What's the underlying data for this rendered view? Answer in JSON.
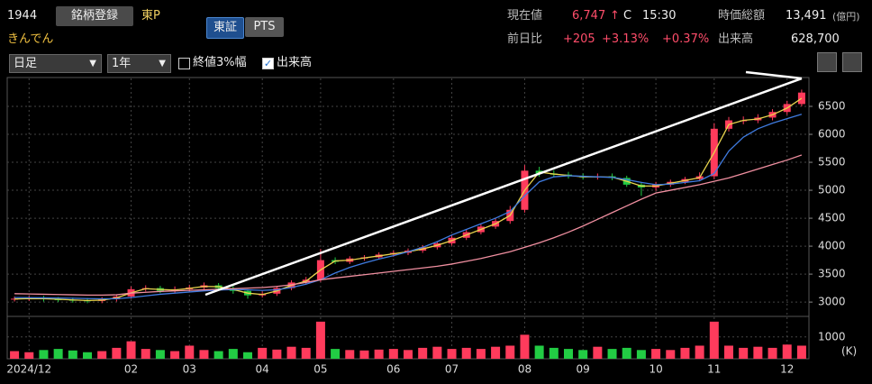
{
  "header": {
    "code": "1944",
    "register_button": "銘柄登録",
    "market": "東P",
    "name": "きんでん",
    "exchange_tabs": [
      "東証",
      "PTS"
    ],
    "price_label": "現在値",
    "price": "6,747",
    "arrow": "↑",
    "price_flag": "C",
    "time": "15:30",
    "market_cap_label": "時価総額",
    "market_cap": "13,491",
    "market_cap_unit": "(億円)",
    "change_label": "前日比",
    "change": "+205",
    "change_pct": "+3.13%",
    "change_pct2": "+0.37%",
    "volume_label": "出来高",
    "volume": "628,700"
  },
  "controls": {
    "period": "日足",
    "range": "1年",
    "option_close3": "終値3%幅",
    "option_volume": "出来高"
  },
  "chart_data": {
    "type": "candlestick",
    "categories": [
      null,
      "2024/12",
      null,
      null,
      null,
      null,
      null,
      null,
      "02",
      null,
      null,
      null,
      "03",
      null,
      null,
      null,
      null,
      "04",
      null,
      null,
      null,
      "05",
      null,
      null,
      null,
      null,
      "06",
      null,
      null,
      null,
      "07",
      null,
      null,
      null,
      null,
      "08",
      null,
      null,
      null,
      "09",
      null,
      null,
      null,
      null,
      "10",
      null,
      null,
      null,
      "11",
      null,
      null,
      null,
      null,
      "12",
      null
    ],
    "open": [
      3050,
      3060,
      3070,
      3050,
      3040,
      3030,
      3020,
      3050,
      3100,
      3230,
      3250,
      3200,
      3230,
      3260,
      3300,
      3250,
      3200,
      3120,
      3150,
      3250,
      3350,
      3400,
      3750,
      3720,
      3780,
      3800,
      3850,
      3880,
      3920,
      3980,
      4050,
      4150,
      4250,
      4350,
      4450,
      4650,
      5350,
      5300,
      5280,
      5250,
      5230,
      5250,
      5220,
      5100,
      5050,
      5100,
      5150,
      5200,
      5250,
      6100,
      6250,
      6250,
      6300,
      6400,
      6542
    ],
    "high": [
      3100,
      3110,
      3110,
      3090,
      3080,
      3070,
      3090,
      3140,
      3280,
      3300,
      3290,
      3280,
      3310,
      3350,
      3340,
      3290,
      3230,
      3190,
      3290,
      3390,
      3450,
      3950,
      3800,
      3820,
      3840,
      3890,
      3920,
      3960,
      4020,
      4090,
      4190,
      4290,
      4390,
      4500,
      4720,
      5450,
      5420,
      5360,
      5330,
      5300,
      5300,
      5300,
      5260,
      5150,
      5150,
      5190,
      5240,
      5320,
      6200,
      6310,
      6320,
      6360,
      6450,
      6600,
      6800
    ],
    "low": [
      3010,
      3020,
      3010,
      3000,
      2990,
      2980,
      2980,
      3010,
      3060,
      3190,
      3160,
      3160,
      3190,
      3220,
      3210,
      3150,
      3060,
      3080,
      3110,
      3210,
      3310,
      3360,
      3680,
      3680,
      3740,
      3760,
      3810,
      3840,
      3880,
      3940,
      4010,
      4110,
      4210,
      4310,
      4400,
      4600,
      5240,
      5230,
      5210,
      5190,
      5190,
      5180,
      5060,
      4900,
      4990,
      5060,
      5110,
      5160,
      5200,
      6050,
      6180,
      6200,
      6250,
      6350,
      6500
    ],
    "close": [
      3060,
      3070,
      3050,
      3040,
      3030,
      3020,
      3050,
      3100,
      3230,
      3250,
      3200,
      3230,
      3260,
      3300,
      3250,
      3200,
      3120,
      3150,
      3250,
      3350,
      3400,
      3750,
      3720,
      3780,
      3800,
      3850,
      3880,
      3920,
      3980,
      4050,
      4150,
      4250,
      4350,
      4450,
      4650,
      5350,
      5300,
      5280,
      5250,
      5230,
      5250,
      5220,
      5100,
      5050,
      5100,
      5150,
      5200,
      5250,
      6100,
      6250,
      6250,
      6300,
      6400,
      6542,
      6747
    ],
    "up_color": "#ff3b5c",
    "down_color": "#22cc44",
    "series": [
      {
        "color": "#e8d44d",
        "values": [
          3055,
          3062,
          3060,
          3050,
          3038,
          3028,
          3035,
          3075,
          3165,
          3240,
          3225,
          3215,
          3245,
          3280,
          3275,
          3225,
          3160,
          3135,
          3200,
          3300,
          3375,
          3575,
          3735,
          3750,
          3790,
          3825,
          3865,
          3900,
          3950,
          4015,
          4100,
          4200,
          4300,
          4400,
          4550,
          5000,
          5325,
          5290,
          5265,
          5240,
          5240,
          5235,
          5160,
          5075,
          5075,
          5125,
          5175,
          5225,
          5675,
          6175,
          6250,
          6275,
          6350,
          6470,
          6645
        ]
      },
      {
        "color": "#3f7be0",
        "values": [
          3080,
          3078,
          3075,
          3072,
          3068,
          3062,
          3058,
          3060,
          3080,
          3110,
          3140,
          3160,
          3180,
          3200,
          3215,
          3225,
          3220,
          3210,
          3220,
          3260,
          3320,
          3400,
          3520,
          3620,
          3700,
          3770,
          3830,
          3900,
          3980,
          4080,
          4200,
          4300,
          4400,
          4500,
          4620,
          4900,
          5150,
          5240,
          5260,
          5250,
          5240,
          5230,
          5190,
          5140,
          5100,
          5110,
          5140,
          5170,
          5300,
          5700,
          5950,
          6100,
          6200,
          6280,
          6360
        ]
      },
      {
        "color": "#f08fa0",
        "values": [
          3150,
          3145,
          3140,
          3135,
          3130,
          3125,
          3125,
          3130,
          3160,
          3175,
          3190,
          3200,
          3210,
          3220,
          3230,
          3240,
          3250,
          3260,
          3280,
          3310,
          3350,
          3400,
          3430,
          3460,
          3490,
          3520,
          3550,
          3580,
          3610,
          3640,
          3680,
          3730,
          3780,
          3840,
          3900,
          3980,
          4060,
          4150,
          4250,
          4360,
          4480,
          4600,
          4720,
          4840,
          4950,
          5000,
          5050,
          5100,
          5160,
          5220,
          5300,
          5380,
          5460,
          5540,
          5630
        ]
      }
    ],
    "volume": [
      350,
      300,
      400,
      450,
      380,
      300,
      350,
      500,
      800,
      450,
      400,
      350,
      600,
      400,
      350,
      450,
      300,
      500,
      420,
      550,
      500,
      1700,
      450,
      400,
      380,
      420,
      450,
      400,
      500,
      550,
      450,
      500,
      450,
      550,
      600,
      1100,
      600,
      500,
      450,
      400,
      550,
      450,
      500,
      400,
      450,
      400,
      500,
      600,
      1700,
      600,
      500,
      550,
      500,
      650,
      600
    ],
    "ylim": [
      2760,
      7000
    ],
    "yticks": [
      3000,
      3500,
      4000,
      4500,
      5000,
      5500,
      6000,
      6500
    ],
    "volume_ylim": [
      0,
      1900
    ],
    "volume_yticks": [
      1000
    ],
    "volume_unit": "(K)",
    "grid": true
  }
}
